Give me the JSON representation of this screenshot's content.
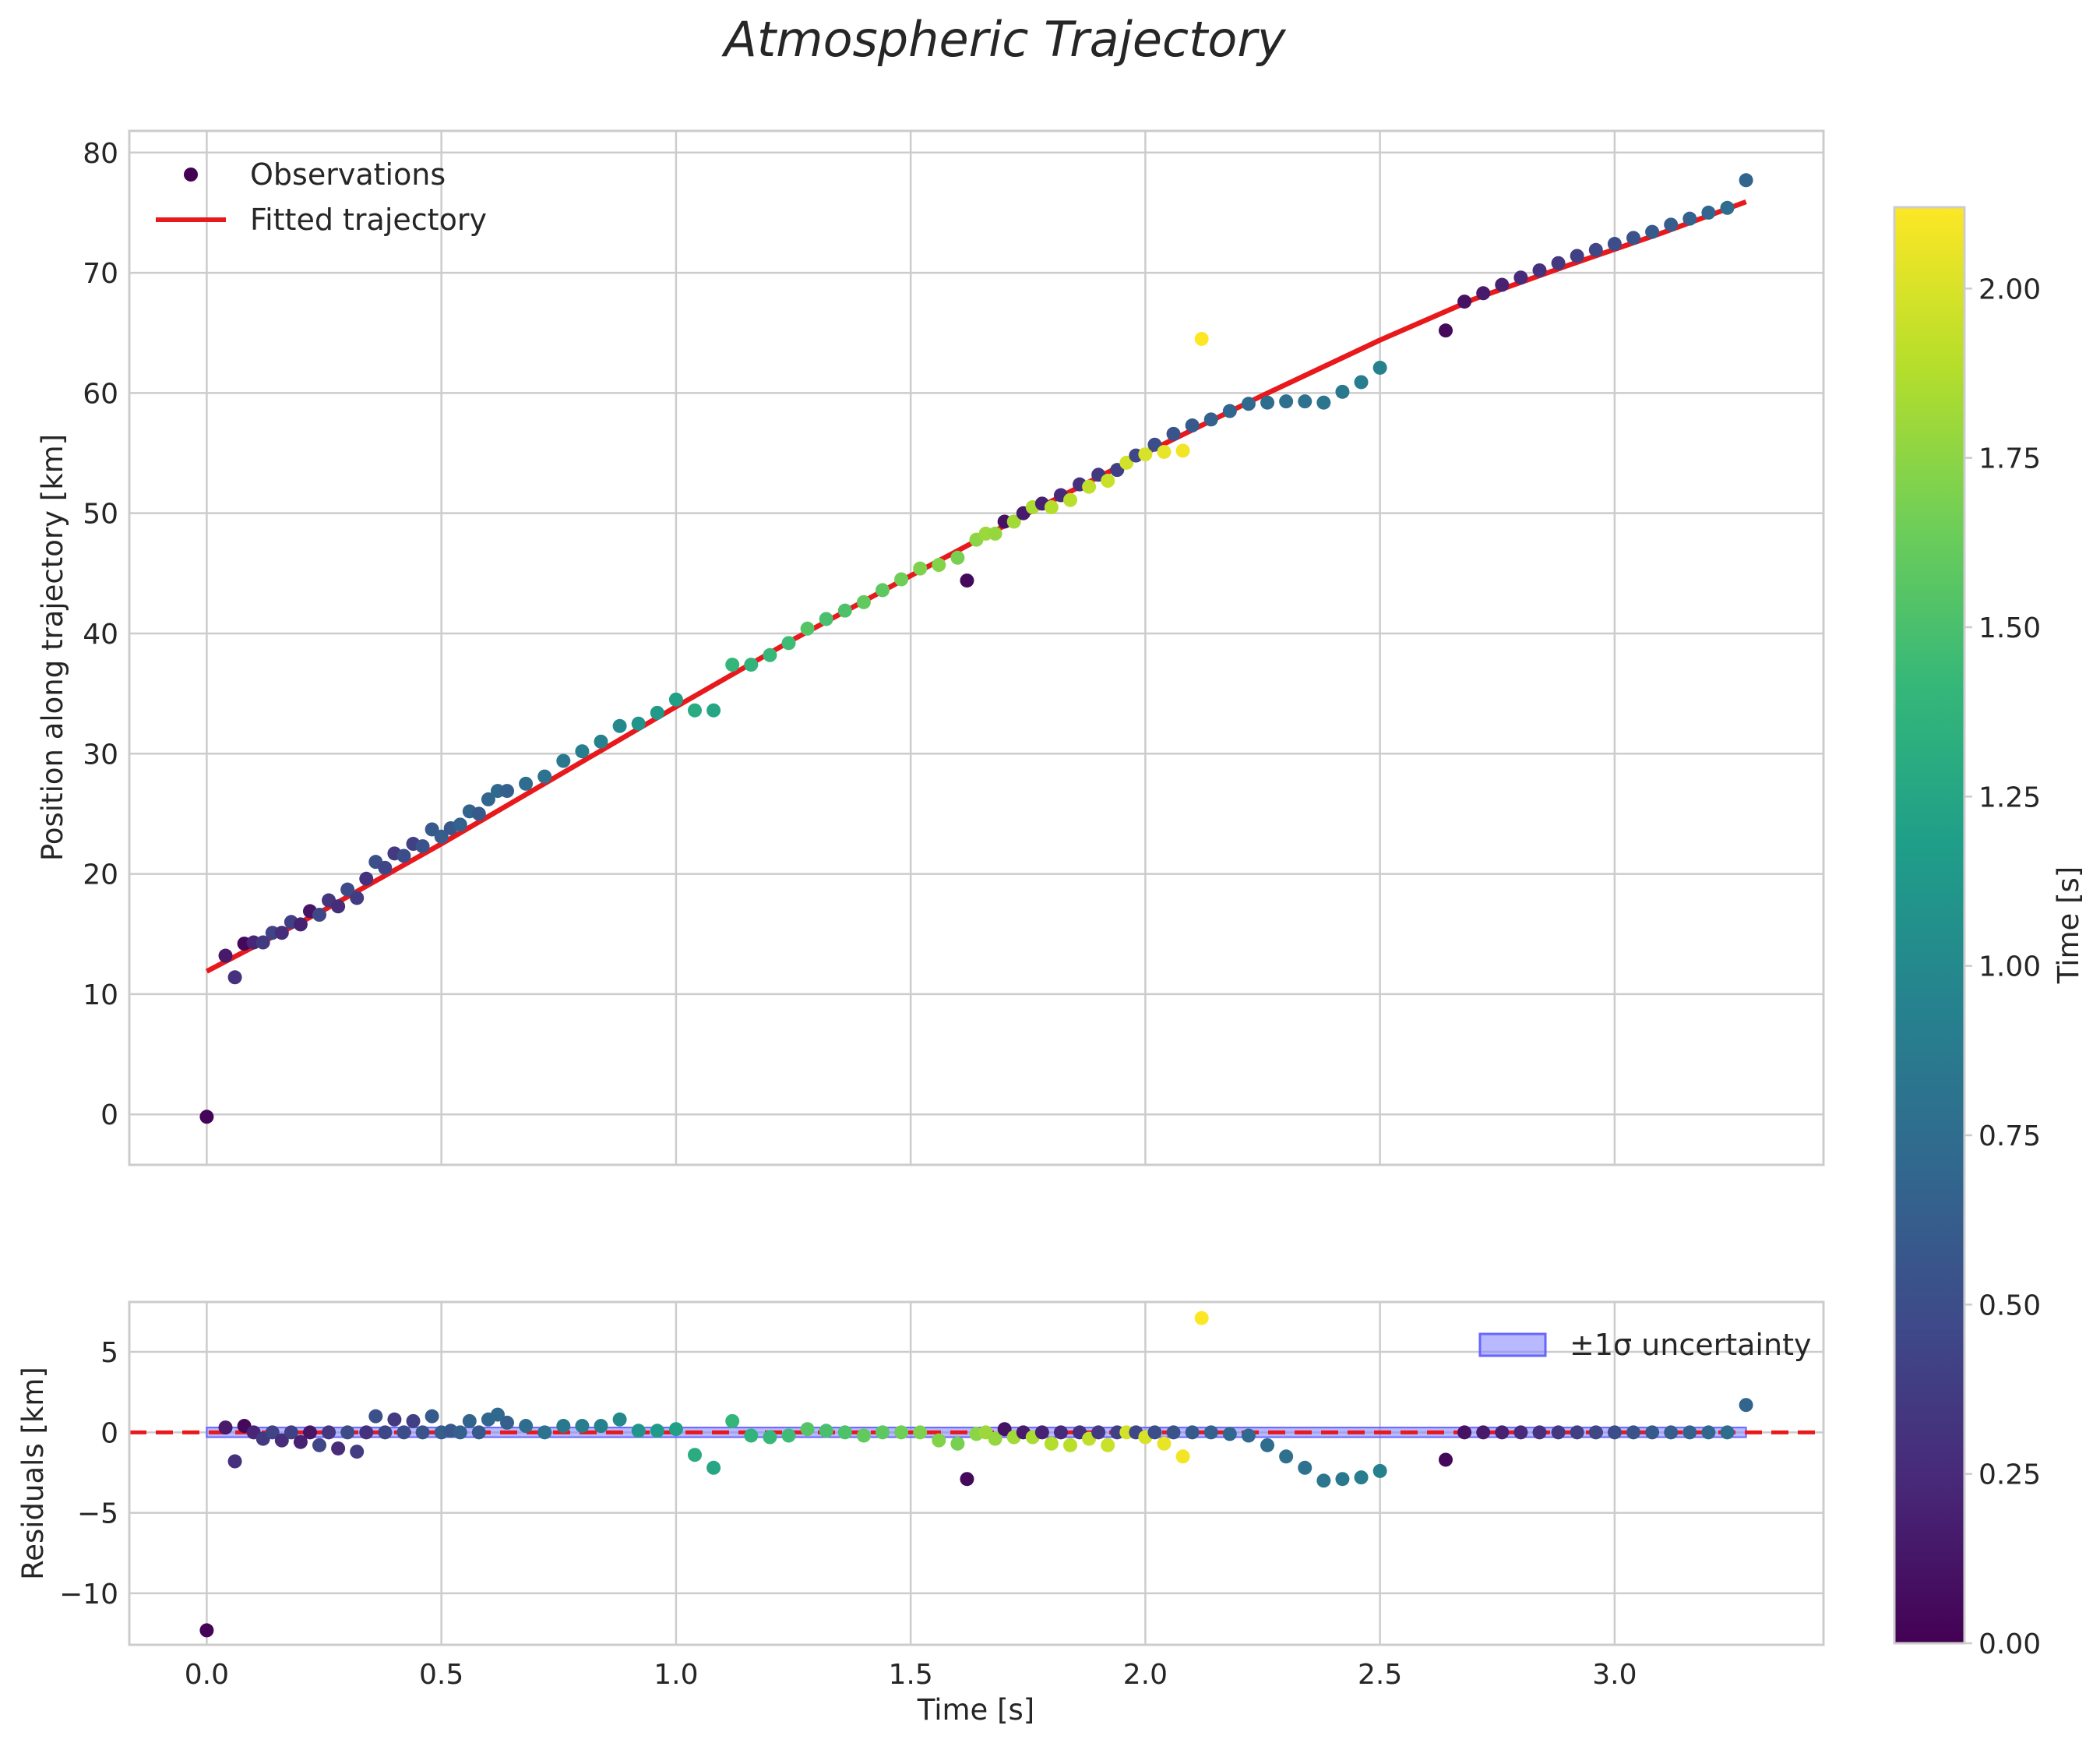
{
  "chart_data": [
    {
      "type": "scatter",
      "title": "Atmospheric Trajectory",
      "xlabel": "",
      "ylabel": "Position along trajectory [km]",
      "xlim": [
        -0.165,
        3.445
      ],
      "ylim": [
        -4.2,
        81.8
      ],
      "xticks": [
        0.0,
        0.5,
        1.0,
        1.5,
        2.0,
        2.5,
        3.0
      ],
      "xtick_labels": [
        "0.0",
        "0.5",
        "1.0",
        "1.5",
        "2.0",
        "2.5",
        "3.0"
      ],
      "yticks": [
        0,
        10,
        20,
        30,
        40,
        50,
        60,
        70,
        80
      ],
      "ytick_labels": [
        "0",
        "10",
        "20",
        "30",
        "40",
        "50",
        "60",
        "70",
        "80"
      ],
      "grid": true,
      "legend_position": "top-left",
      "legend": [
        "Observations",
        "Fitted trajectory"
      ],
      "observations": {
        "name": "Observations",
        "x": [
          0.0,
          0.04,
          0.06,
          0.08,
          0.1,
          0.12,
          0.14,
          0.16,
          0.18,
          0.2,
          0.22,
          0.24,
          0.26,
          0.28,
          0.3,
          0.32,
          0.34,
          0.36,
          0.38,
          0.4,
          0.42,
          0.44,
          0.46,
          0.48,
          0.5,
          0.52,
          0.54,
          0.56,
          0.58,
          0.6,
          0.62,
          0.64,
          0.68,
          0.72,
          0.76,
          0.8,
          0.84,
          0.88,
          0.92,
          0.96,
          1.0,
          1.04,
          1.08,
          1.12,
          1.16,
          1.2,
          1.24,
          1.28,
          1.32,
          1.36,
          1.4,
          1.44,
          1.48,
          1.52,
          1.56,
          1.6,
          1.62,
          1.64,
          1.66,
          1.68,
          1.7,
          1.72,
          1.74,
          1.76,
          1.78,
          1.8,
          1.82,
          1.84,
          1.86,
          1.88,
          1.9,
          1.92,
          1.94,
          1.96,
          1.98,
          2.0,
          2.02,
          2.04,
          2.06,
          2.08,
          2.1,
          2.12,
          2.14,
          2.18,
          2.22,
          2.26,
          2.3,
          2.34,
          2.38,
          2.42,
          2.46,
          2.5,
          2.64,
          2.68,
          2.72,
          2.76,
          2.8,
          2.84,
          2.88,
          2.92,
          2.96,
          3.0,
          3.04,
          3.08,
          3.12,
          3.16,
          3.2,
          3.24,
          3.28
        ],
        "y": [
          -0.2,
          13.2,
          11.4,
          14.2,
          14.3,
          14.3,
          15.1,
          15.1,
          16.0,
          15.8,
          16.9,
          16.6,
          17.8,
          17.3,
          18.7,
          18.0,
          19.6,
          21.0,
          20.5,
          21.7,
          21.5,
          22.5,
          22.3,
          23.7,
          23.1,
          23.8,
          24.1,
          25.2,
          25.0,
          26.2,
          26.9,
          26.9,
          27.5,
          28.1,
          29.4,
          30.2,
          31.0,
          32.3,
          32.5,
          33.4,
          34.5,
          33.6,
          33.6,
          37.4,
          37.4,
          38.2,
          39.2,
          40.4,
          41.2,
          41.9,
          42.6,
          43.6,
          44.5,
          45.4,
          45.7,
          46.3,
          44.4,
          47.8,
          48.3,
          48.3,
          49.3,
          49.3,
          50.0,
          50.5,
          50.8,
          50.5,
          51.5,
          51.1,
          52.4,
          52.2,
          53.2,
          52.7,
          53.6,
          54.2,
          54.8,
          54.9,
          55.7,
          55.1,
          56.6,
          55.2,
          57.3,
          64.5,
          57.8,
          58.5,
          59.1,
          59.2,
          59.3,
          59.3,
          59.2,
          60.1,
          60.9,
          62.1,
          65.2,
          67.6,
          68.3,
          69.0,
          69.6,
          70.2,
          70.8,
          71.4,
          71.9,
          72.4,
          72.9,
          73.4,
          74.0,
          74.5,
          75.0,
          75.4,
          77.7
        ],
        "color_values": [
          0.02,
          0.15,
          0.3,
          0.05,
          0.22,
          0.35,
          0.42,
          0.28,
          0.4,
          0.2,
          0.12,
          0.45,
          0.33,
          0.26,
          0.48,
          0.38,
          0.3,
          0.52,
          0.44,
          0.36,
          0.5,
          0.4,
          0.55,
          0.6,
          0.62,
          0.58,
          0.65,
          0.68,
          0.6,
          0.7,
          0.72,
          0.64,
          0.75,
          0.8,
          0.85,
          0.9,
          0.92,
          1.0,
          1.1,
          1.15,
          1.2,
          1.3,
          1.25,
          1.4,
          1.38,
          1.42,
          1.45,
          1.55,
          1.5,
          1.52,
          1.6,
          1.58,
          1.65,
          1.7,
          1.72,
          1.68,
          0.05,
          1.75,
          1.8,
          1.78,
          0.1,
          1.82,
          0.15,
          1.85,
          0.2,
          1.88,
          0.25,
          1.9,
          0.3,
          1.92,
          0.35,
          1.95,
          0.4,
          1.98,
          0.45,
          2.0,
          0.5,
          2.05,
          0.55,
          2.08,
          0.6,
          2.12,
          0.65,
          0.7,
          0.72,
          0.75,
          0.78,
          0.8,
          0.82,
          0.85,
          0.9,
          0.92,
          0.05,
          0.1,
          0.15,
          0.2,
          0.25,
          0.3,
          0.35,
          0.4,
          0.45,
          0.5,
          0.55,
          0.6,
          0.62,
          0.65,
          0.7,
          0.75,
          0.68
        ]
      },
      "fit": {
        "name": "Fitted trajectory",
        "x": [
          0.0,
          0.25,
          0.5,
          0.75,
          1.0,
          1.25,
          1.5,
          1.75,
          2.0,
          2.25,
          2.5,
          2.7,
          2.9,
          3.1,
          3.28
        ],
        "y": [
          11.9,
          17.0,
          22.5,
          28.2,
          33.9,
          39.5,
          44.8,
          50.0,
          55.0,
          59.8,
          64.4,
          67.8,
          70.6,
          73.3,
          75.9
        ]
      }
    },
    {
      "type": "scatter",
      "xlabel": "Time [s]",
      "ylabel": "Residuals [km]",
      "xlim": [
        -0.165,
        3.445
      ],
      "ylim": [
        -13.2,
        8.1
      ],
      "xticks": [
        0.0,
        0.5,
        1.0,
        1.5,
        2.0,
        2.5,
        3.0
      ],
      "xtick_labels": [
        "0.0",
        "0.5",
        "1.0",
        "1.5",
        "2.0",
        "2.5",
        "3.0"
      ],
      "yticks": [
        5,
        0,
        -5,
        -10
      ],
      "ytick_labels": [
        "5",
        "0",
        "−5",
        "−10"
      ],
      "grid": true,
      "legend_position": "top-right",
      "legend": [
        "±1σ uncertainty"
      ],
      "uncertainty_band": {
        "x": [
          0.0,
          3.28
        ],
        "lower": -0.3,
        "upper": 0.3,
        "color": "#8080ff"
      },
      "zero_line": {
        "y": 0,
        "color": "#e8191c",
        "style": "dashed"
      },
      "residuals": {
        "x": [
          0.0,
          0.04,
          0.06,
          0.08,
          0.1,
          0.12,
          0.14,
          0.16,
          0.18,
          0.2,
          0.22,
          0.24,
          0.26,
          0.28,
          0.3,
          0.32,
          0.34,
          0.36,
          0.38,
          0.4,
          0.42,
          0.44,
          0.46,
          0.48,
          0.5,
          0.52,
          0.54,
          0.56,
          0.58,
          0.6,
          0.62,
          0.64,
          0.68,
          0.72,
          0.76,
          0.8,
          0.84,
          0.88,
          0.92,
          0.96,
          1.0,
          1.04,
          1.08,
          1.12,
          1.16,
          1.2,
          1.24,
          1.28,
          1.32,
          1.36,
          1.4,
          1.44,
          1.48,
          1.52,
          1.56,
          1.6,
          1.62,
          1.64,
          1.66,
          1.68,
          1.7,
          1.72,
          1.74,
          1.76,
          1.78,
          1.8,
          1.82,
          1.84,
          1.86,
          1.88,
          1.9,
          1.92,
          1.94,
          1.96,
          1.98,
          2.0,
          2.02,
          2.04,
          2.06,
          2.08,
          2.1,
          2.12,
          2.14,
          2.18,
          2.22,
          2.26,
          2.3,
          2.34,
          2.38,
          2.42,
          2.46,
          2.5,
          2.64,
          2.68,
          2.72,
          2.76,
          2.8,
          2.84,
          2.88,
          2.92,
          2.96,
          3.0,
          3.04,
          3.08,
          3.12,
          3.16,
          3.2,
          3.24,
          3.28
        ],
        "y": [
          -12.3,
          0.3,
          -1.8,
          0.4,
          0.0,
          -0.4,
          0.0,
          -0.5,
          0.0,
          -0.6,
          0.0,
          -0.8,
          0.0,
          -1.0,
          0.0,
          -1.2,
          0.0,
          1.0,
          0.0,
          0.8,
          0.0,
          0.7,
          0.0,
          1.0,
          0.0,
          0.1,
          0.0,
          0.7,
          0.0,
          0.8,
          1.1,
          0.6,
          0.4,
          0.0,
          0.4,
          0.4,
          0.4,
          0.8,
          0.1,
          0.1,
          0.2,
          -1.4,
          -2.2,
          0.7,
          -0.2,
          -0.3,
          -0.2,
          0.2,
          0.1,
          0.0,
          -0.2,
          0.0,
          0.0,
          0.0,
          -0.5,
          -0.7,
          -2.9,
          -0.1,
          0.0,
          -0.4,
          0.2,
          -0.3,
          0.0,
          -0.3,
          0.0,
          -0.7,
          0.0,
          -0.8,
          0.0,
          -0.4,
          0.0,
          -0.8,
          0.0,
          0.0,
          0.0,
          -0.3,
          0.0,
          -0.7,
          0.0,
          -1.5,
          0.0,
          7.1,
          0.0,
          -0.1,
          -0.2,
          -0.8,
          -1.5,
          -2.2,
          -3.0,
          -2.9,
          -2.8,
          -2.4,
          -1.7,
          0.0,
          0.0,
          0.0,
          0.0,
          0.0,
          0.0,
          0.0,
          0.0,
          0.0,
          0.0,
          0.0,
          0.0,
          0.0,
          0.0,
          0.0,
          1.7
        ]
      }
    }
  ],
  "colorbar": {
    "label": "Time [s]",
    "range": [
      0.0,
      2.12
    ],
    "ticks": [
      0.0,
      0.25,
      0.5,
      0.75,
      1.0,
      1.25,
      1.5,
      1.75,
      2.0
    ],
    "tick_labels": [
      "0.00",
      "0.25",
      "0.50",
      "0.75",
      "1.00",
      "1.25",
      "1.50",
      "1.75",
      "2.00"
    ],
    "colormap": [
      "#440154",
      "#482878",
      "#3e4a89",
      "#31688e",
      "#26828e",
      "#1f9e89",
      "#35b779",
      "#6ece58",
      "#b5de2b",
      "#fde725"
    ]
  },
  "colors": {
    "fit_line": "#e8191c",
    "grid": "#cccccc",
    "axes_edge": "#cccccc",
    "band_edge": "#6666ff"
  }
}
